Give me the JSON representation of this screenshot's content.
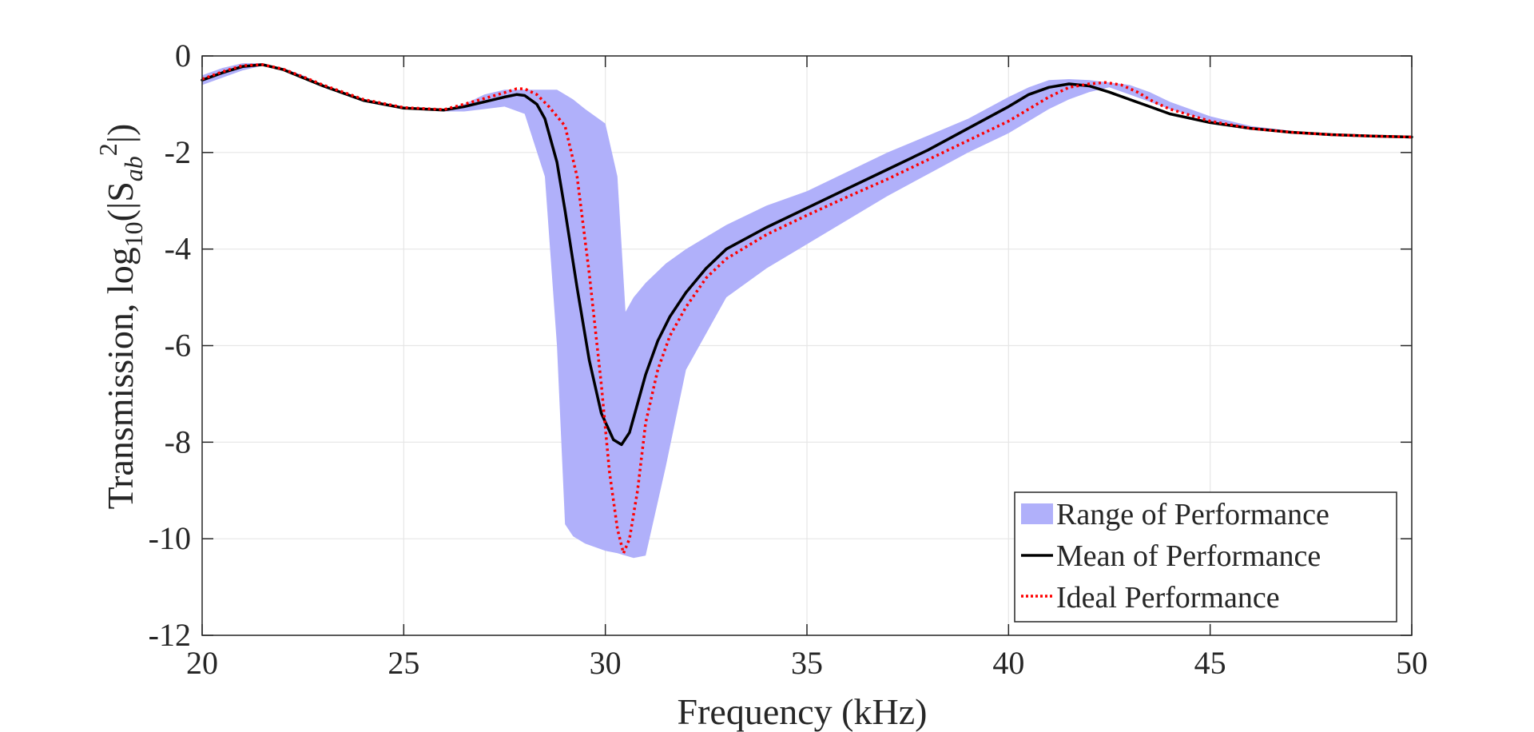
{
  "chart_data": {
    "type": "line",
    "title": "",
    "xlabel": "Frequency (kHz)",
    "ylabel": {
      "text": "Transmission, log",
      "sub1": "10",
      "middle": "(|S",
      "sub2": "ab",
      "sup": "2",
      "end": "|)"
    },
    "xlim": [
      20,
      50
    ],
    "ylim": [
      -12,
      0
    ],
    "xticks": [
      20,
      25,
      30,
      35,
      40,
      45,
      50
    ],
    "xtick_labels": [
      "20",
      "25",
      "30",
      "35",
      "40",
      "45",
      "50"
    ],
    "yticks": [
      0,
      -2,
      -4,
      -6,
      -8,
      -10,
      -12
    ],
    "ytick_labels": [
      "0",
      "-2",
      "-4",
      "-6",
      "-8",
      "-10",
      "-12"
    ],
    "grid": true,
    "legend_position": "bottom-right",
    "series": [
      {
        "name": "Range of Performance",
        "kind": "band",
        "color": "#b0b0fa",
        "x": [
          20.0,
          20.5,
          21.0,
          21.5,
          22.0,
          22.5,
          23.0,
          24.0,
          25.0,
          26.0,
          26.5,
          27.0,
          27.5,
          28.0,
          28.5,
          28.8,
          29.0,
          29.2,
          29.5,
          30.0,
          30.3,
          30.5,
          30.7,
          31.0,
          31.5,
          32.0,
          33.0,
          34.0,
          35.0,
          36.0,
          37.0,
          38.0,
          39.0,
          40.0,
          40.5,
          41.0,
          41.5,
          42.0,
          42.5,
          43.0,
          43.5,
          44.0,
          45.0,
          46.0,
          47.0,
          48.0,
          49.0,
          50.0
        ],
        "upper": [
          -0.4,
          -0.25,
          -0.15,
          -0.15,
          -0.25,
          -0.4,
          -0.6,
          -0.9,
          -1.05,
          -1.1,
          -1.0,
          -0.8,
          -0.7,
          -0.7,
          -0.7,
          -0.7,
          -0.8,
          -0.9,
          -1.1,
          -1.4,
          -2.5,
          -5.3,
          -5.0,
          -4.7,
          -4.3,
          -4.0,
          -3.5,
          -3.1,
          -2.8,
          -2.4,
          -2.0,
          -1.65,
          -1.3,
          -0.85,
          -0.65,
          -0.5,
          -0.48,
          -0.5,
          -0.55,
          -0.6,
          -0.75,
          -0.95,
          -1.25,
          -1.45,
          -1.55,
          -1.62,
          -1.66,
          -1.68
        ],
        "lower": [
          -0.6,
          -0.45,
          -0.3,
          -0.2,
          -0.28,
          -0.45,
          -0.65,
          -0.95,
          -1.1,
          -1.15,
          -1.15,
          -1.1,
          -1.05,
          -1.2,
          -2.5,
          -6.0,
          -9.7,
          -9.95,
          -10.1,
          -10.25,
          -10.3,
          -10.35,
          -10.4,
          -10.35,
          -8.5,
          -6.5,
          -5.0,
          -4.4,
          -3.9,
          -3.4,
          -2.9,
          -2.45,
          -2.0,
          -1.6,
          -1.35,
          -1.1,
          -0.9,
          -0.75,
          -0.65,
          -0.8,
          -0.95,
          -1.1,
          -1.35,
          -1.5,
          -1.58,
          -1.63,
          -1.66,
          -1.68
        ]
      },
      {
        "name": "Mean of Performance",
        "kind": "line",
        "color": "#000000",
        "x": [
          20.0,
          20.5,
          21.0,
          21.5,
          22.0,
          22.5,
          23.0,
          24.0,
          25.0,
          26.0,
          26.5,
          27.0,
          27.5,
          27.8,
          28.0,
          28.3,
          28.5,
          28.8,
          29.0,
          29.3,
          29.6,
          29.9,
          30.2,
          30.4,
          30.6,
          30.8,
          31.0,
          31.3,
          31.6,
          32.0,
          32.5,
          33.0,
          34.0,
          35.0,
          36.0,
          37.0,
          38.0,
          39.0,
          40.0,
          40.5,
          41.0,
          41.5,
          42.0,
          42.5,
          43.0,
          43.5,
          44.0,
          45.0,
          46.0,
          47.0,
          48.0,
          49.0,
          50.0
        ],
        "y": [
          -0.5,
          -0.35,
          -0.22,
          -0.18,
          -0.28,
          -0.45,
          -0.62,
          -0.92,
          -1.08,
          -1.12,
          -1.05,
          -0.95,
          -0.85,
          -0.8,
          -0.82,
          -1.0,
          -1.3,
          -2.2,
          -3.2,
          -4.8,
          -6.3,
          -7.4,
          -7.95,
          -8.05,
          -7.8,
          -7.2,
          -6.6,
          -5.9,
          -5.4,
          -4.9,
          -4.4,
          -4.0,
          -3.55,
          -3.15,
          -2.75,
          -2.35,
          -1.95,
          -1.5,
          -1.05,
          -0.8,
          -0.65,
          -0.58,
          -0.62,
          -0.75,
          -0.9,
          -1.05,
          -1.2,
          -1.38,
          -1.5,
          -1.58,
          -1.63,
          -1.66,
          -1.68
        ]
      },
      {
        "name": "Ideal Performance",
        "kind": "line",
        "dashed": true,
        "color": "#ff0000",
        "x": [
          20.0,
          20.5,
          21.0,
          21.5,
          22.0,
          22.5,
          23.0,
          24.0,
          25.0,
          26.0,
          26.5,
          27.0,
          27.5,
          27.8,
          28.0,
          28.3,
          28.6,
          29.0,
          29.3,
          29.6,
          29.9,
          30.1,
          30.3,
          30.45,
          30.6,
          30.8,
          31.0,
          31.3,
          31.6,
          32.0,
          32.5,
          33.0,
          34.0,
          35.0,
          36.0,
          37.0,
          38.0,
          39.0,
          40.0,
          40.5,
          41.0,
          41.5,
          42.0,
          42.4,
          42.8,
          43.2,
          43.6,
          44.0,
          45.0,
          46.0,
          47.0,
          48.0,
          49.0,
          50.0
        ],
        "y": [
          -0.48,
          -0.33,
          -0.2,
          -0.18,
          -0.27,
          -0.43,
          -0.6,
          -0.9,
          -1.07,
          -1.11,
          -1.0,
          -0.88,
          -0.76,
          -0.68,
          -0.68,
          -0.8,
          -1.05,
          -1.45,
          -2.5,
          -4.5,
          -6.8,
          -8.6,
          -9.8,
          -10.3,
          -10.0,
          -9.0,
          -7.6,
          -6.5,
          -5.8,
          -5.2,
          -4.6,
          -4.2,
          -3.7,
          -3.3,
          -2.92,
          -2.55,
          -2.15,
          -1.75,
          -1.35,
          -1.1,
          -0.85,
          -0.65,
          -0.58,
          -0.55,
          -0.6,
          -0.75,
          -0.95,
          -1.1,
          -1.35,
          -1.5,
          -1.58,
          -1.63,
          -1.66,
          -1.68
        ]
      }
    ]
  }
}
